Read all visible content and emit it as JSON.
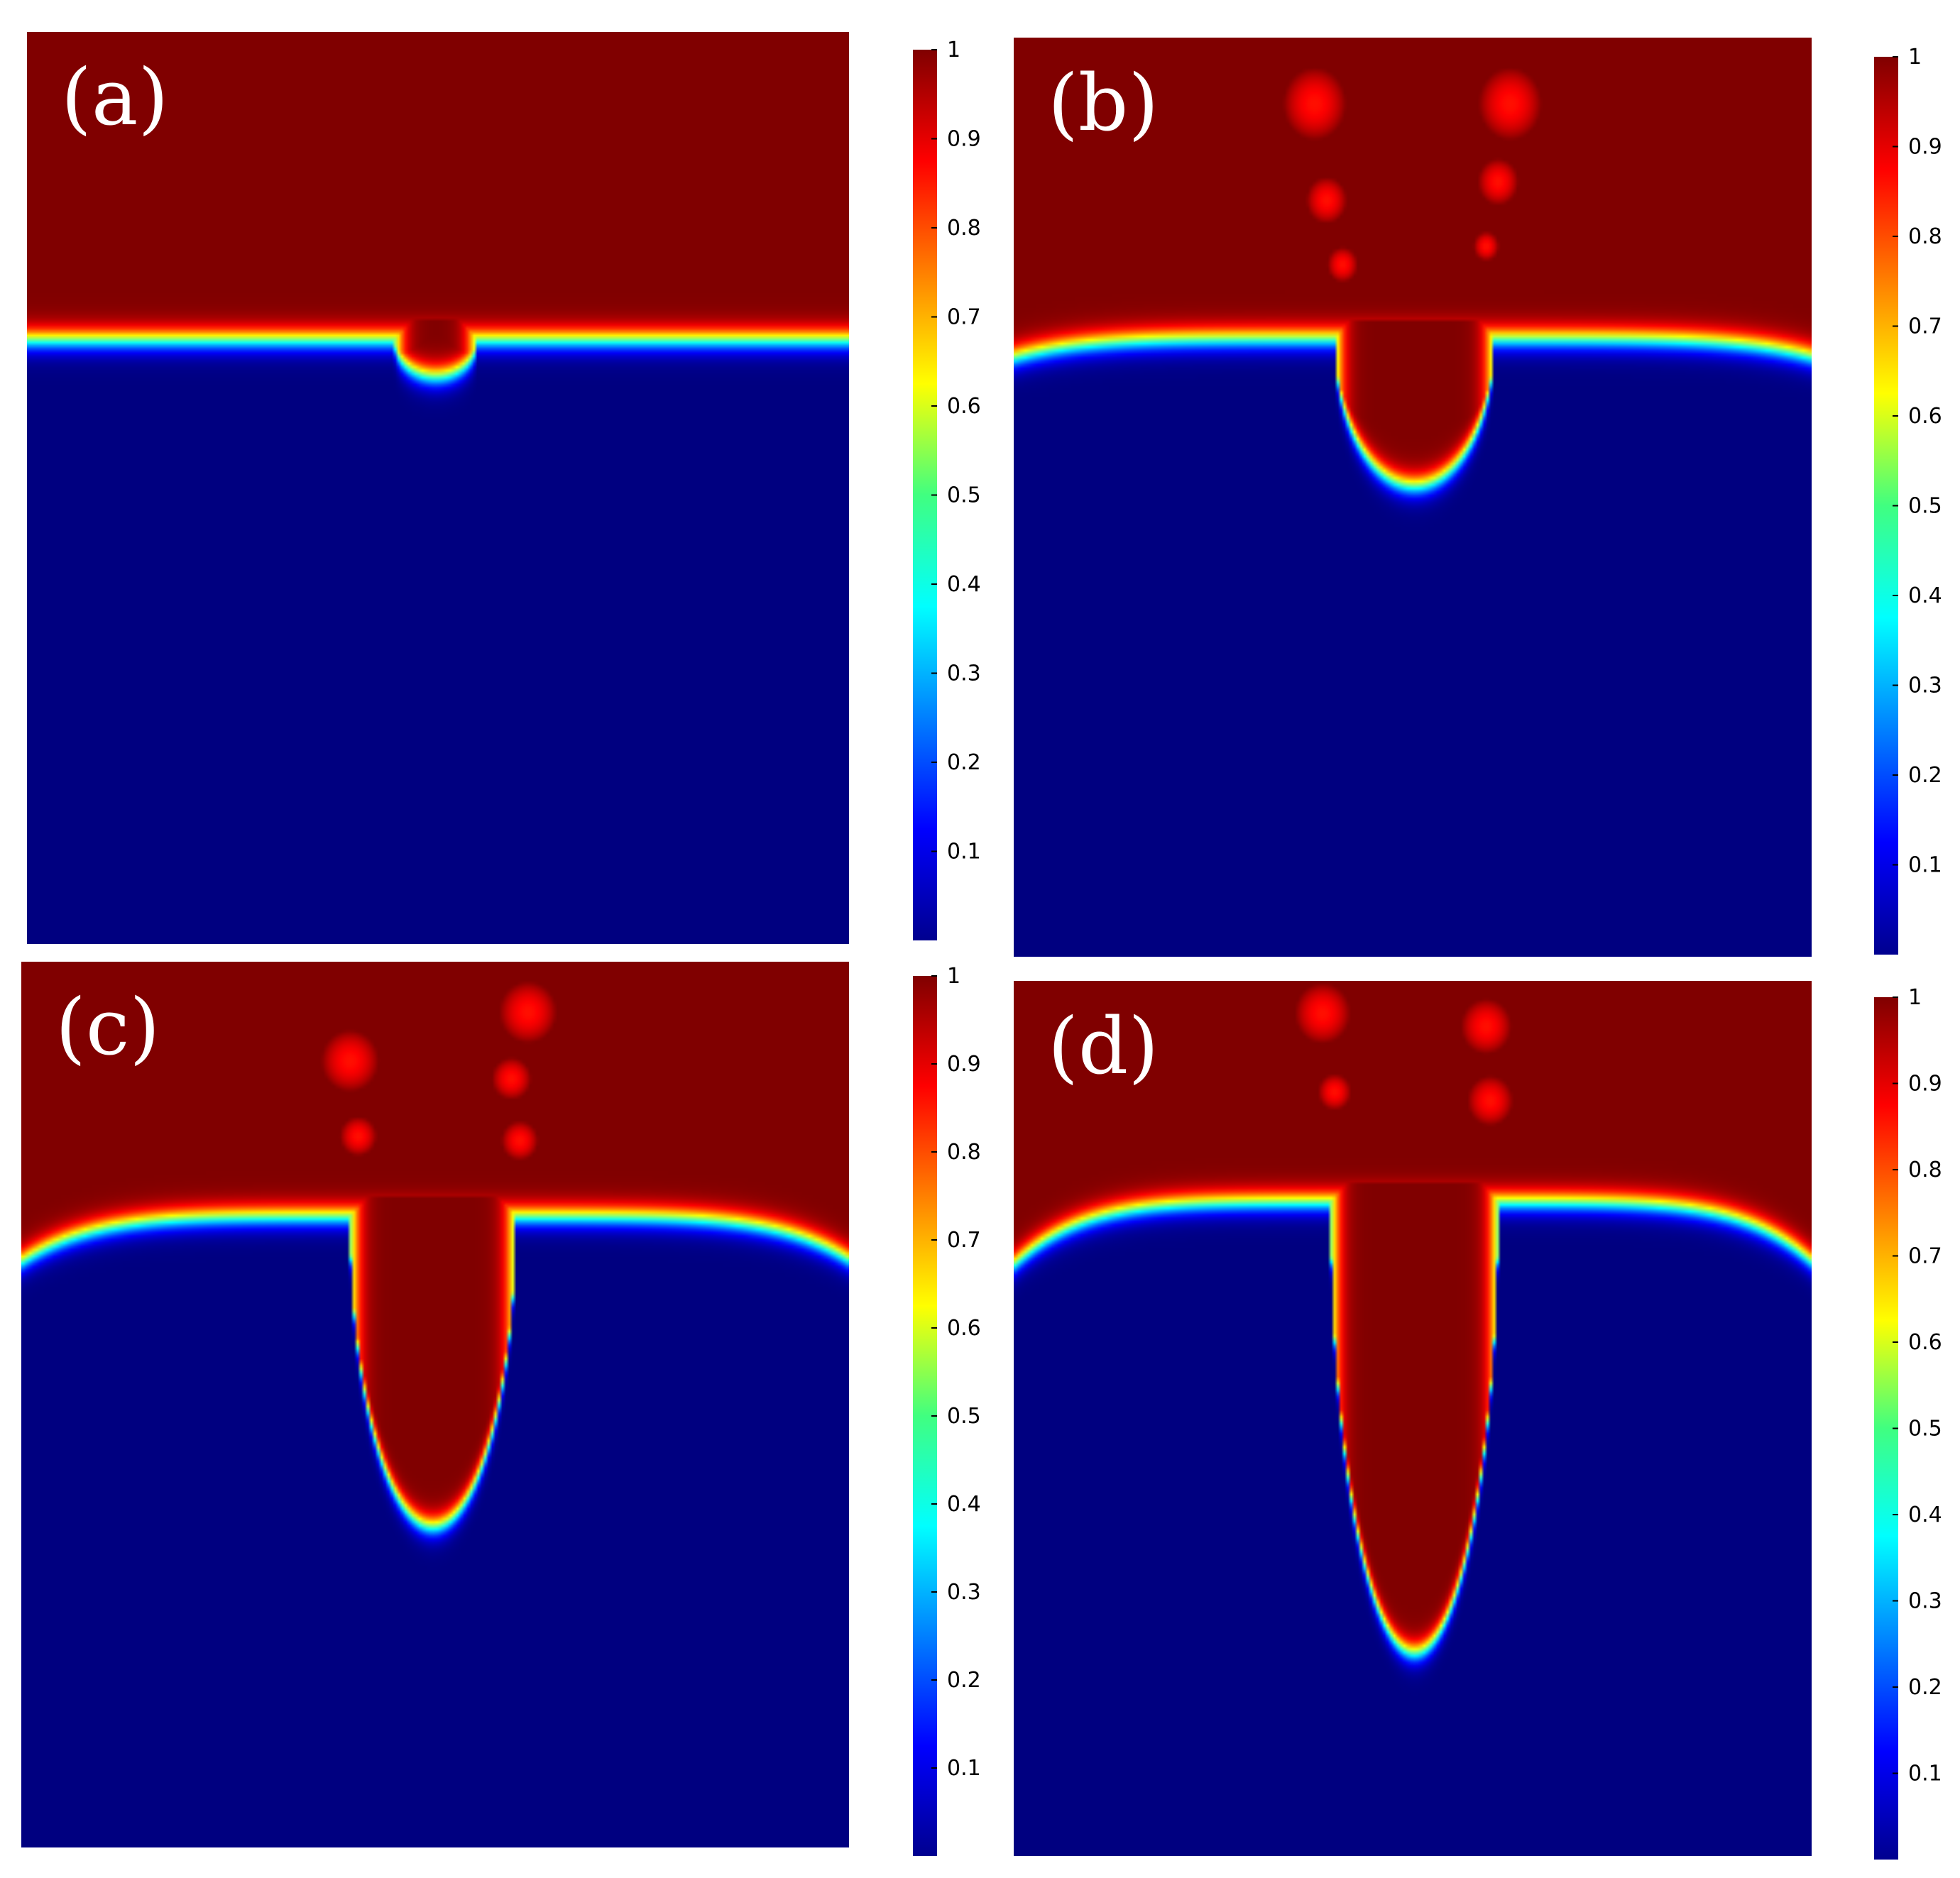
{
  "figure": {
    "description_type": "heatmap",
    "colormap": "jet"
  },
  "chart_data": [
    {
      "type": "heatmap",
      "panel_label": "(a)",
      "colorbar": {
        "min": 0,
        "max": 1,
        "ticks": [
          "0.1",
          "0.2",
          "0.3",
          "0.4",
          "0.5",
          "0.6",
          "0.7",
          "0.8",
          "0.9",
          "1"
        ]
      },
      "field": {
        "upper_value": 1,
        "lower_value": 0,
        "interface_level": 0.335,
        "finger_depth": 0.375,
        "finger_center": 0.495,
        "finger_half_width": 0.05,
        "edge_droop": 0.0,
        "droplets": []
      }
    },
    {
      "type": "heatmap",
      "panel_label": "(b)",
      "colorbar": {
        "min": 0,
        "max": 1,
        "ticks": [
          "0.1",
          "0.2",
          "0.3",
          "0.4",
          "0.5",
          "0.6",
          "0.7",
          "0.8",
          "0.9",
          "1"
        ]
      },
      "field": {
        "upper_value": 1,
        "lower_value": 0,
        "interface_level": 0.325,
        "finger_depth": 0.485,
        "finger_center": 0.5,
        "finger_half_width": 0.1,
        "edge_droop": 0.02,
        "droplets": [
          {
            "x": 0.375,
            "y": 0.07,
            "r": 0.025
          },
          {
            "x": 0.62,
            "y": 0.07,
            "r": 0.025
          },
          {
            "x": 0.39,
            "y": 0.175,
            "r": 0.016
          },
          {
            "x": 0.605,
            "y": 0.155,
            "r": 0.016
          },
          {
            "x": 0.41,
            "y": 0.245,
            "r": 0.012
          },
          {
            "x": 0.59,
            "y": 0.225,
            "r": 0.01
          }
        ]
      }
    },
    {
      "type": "heatmap",
      "panel_label": "(c)",
      "colorbar": {
        "min": 0,
        "max": 1,
        "ticks": [
          "0.1",
          "0.2",
          "0.3",
          "0.4",
          "0.5",
          "0.6",
          "0.7",
          "0.8",
          "0.9",
          "1"
        ]
      },
      "field": {
        "upper_value": 1,
        "lower_value": 0,
        "interface_level": 0.285,
        "finger_depth": 0.635,
        "finger_center": 0.495,
        "finger_half_width": 0.1,
        "edge_droop": 0.05,
        "droplets": [
          {
            "x": 0.61,
            "y": 0.055,
            "r": 0.022
          },
          {
            "x": 0.395,
            "y": 0.11,
            "r": 0.022
          },
          {
            "x": 0.59,
            "y": 0.13,
            "r": 0.015
          },
          {
            "x": 0.405,
            "y": 0.195,
            "r": 0.014
          },
          {
            "x": 0.6,
            "y": 0.2,
            "r": 0.014
          }
        ]
      }
    },
    {
      "type": "heatmap",
      "panel_label": "(d)",
      "colorbar": {
        "min": 0,
        "max": 1,
        "ticks": [
          "0.1",
          "0.2",
          "0.3",
          "0.4",
          "0.5",
          "0.6",
          "0.7",
          "0.8",
          "0.9",
          "1"
        ]
      },
      "field": {
        "upper_value": 1,
        "lower_value": 0,
        "interface_level": 0.25,
        "finger_depth": 0.765,
        "finger_center": 0.5,
        "finger_half_width": 0.105,
        "edge_droop": 0.07,
        "droplets": [
          {
            "x": 0.385,
            "y": 0.035,
            "r": 0.022
          },
          {
            "x": 0.59,
            "y": 0.05,
            "r": 0.02
          },
          {
            "x": 0.4,
            "y": 0.125,
            "r": 0.013
          },
          {
            "x": 0.595,
            "y": 0.135,
            "r": 0.018
          }
        ]
      }
    }
  ]
}
